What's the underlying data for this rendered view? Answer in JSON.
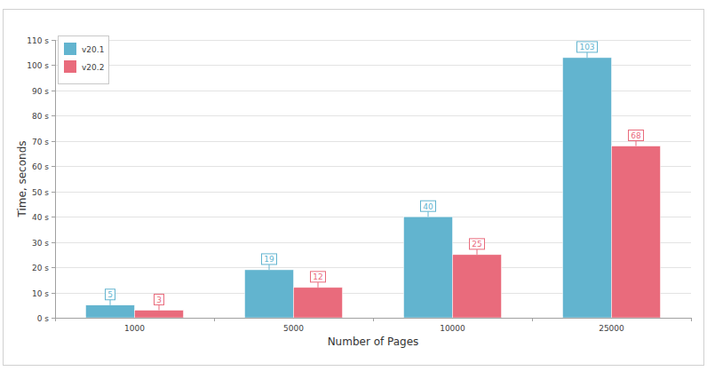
{
  "chart_data": {
    "type": "bar",
    "x_label": "Number of Pages",
    "y_label": "Time, seconds",
    "categories": [
      "1000",
      "5000",
      "10000",
      "25000"
    ],
    "series": [
      {
        "name": "v20.1",
        "color": "#62b4cf",
        "values": [
          5,
          19,
          40,
          103
        ]
      },
      {
        "name": "v20.2",
        "color": "#e96b7c",
        "values": [
          3,
          12,
          25,
          68
        ]
      }
    ],
    "ylim": [
      0,
      110
    ],
    "yticks": [
      {
        "value": 0,
        "label": "0 s"
      },
      {
        "value": 10,
        "label": "10 s"
      },
      {
        "value": 20,
        "label": "20 s"
      },
      {
        "value": 30,
        "label": "30 s"
      },
      {
        "value": 40,
        "label": "40 s"
      },
      {
        "value": 50,
        "label": "50 s"
      },
      {
        "value": 60,
        "label": "60 s"
      },
      {
        "value": 70,
        "label": "70 s"
      },
      {
        "value": 80,
        "label": "80 s"
      },
      {
        "value": 90,
        "label": "90 s"
      },
      {
        "value": 100,
        "label": "100 s"
      },
      {
        "value": 110,
        "label": "110 s"
      }
    ],
    "grid": true,
    "legend": "top-left",
    "data_labels": true
  }
}
